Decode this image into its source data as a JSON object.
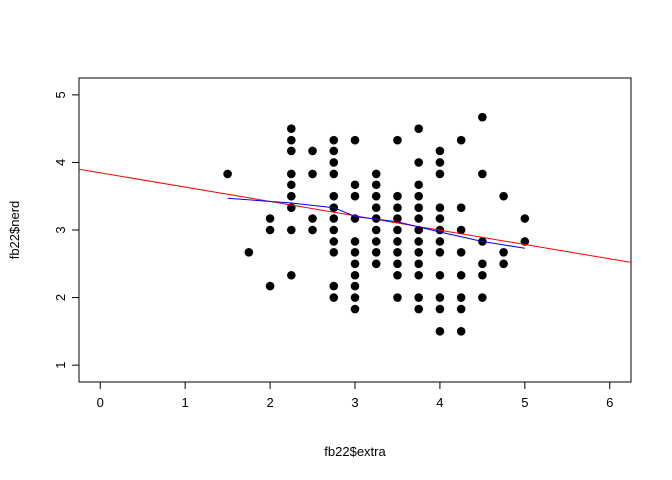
{
  "chart_data": {
    "type": "scatter",
    "title": "",
    "xlabel": "fb22$extra",
    "ylabel": "fb22$nerd",
    "xlim": [
      -0.25,
      6.25
    ],
    "ylim": [
      0.75,
      5.25
    ],
    "xticks": [
      0,
      1,
      2,
      3,
      4,
      5,
      6
    ],
    "yticks": [
      1,
      2,
      3,
      4,
      5
    ],
    "grid": false,
    "legend": "none",
    "points": [
      [
        1.5,
        3.83
      ],
      [
        1.75,
        2.67
      ],
      [
        2.0,
        3.17
      ],
      [
        2.0,
        3.0
      ],
      [
        2.0,
        2.17
      ],
      [
        2.25,
        4.5
      ],
      [
        2.25,
        4.33
      ],
      [
        2.25,
        4.17
      ],
      [
        2.25,
        3.83
      ],
      [
        2.25,
        3.67
      ],
      [
        2.25,
        3.5
      ],
      [
        2.25,
        3.33
      ],
      [
        2.25,
        3.0
      ],
      [
        2.25,
        2.33
      ],
      [
        2.5,
        4.17
      ],
      [
        2.5,
        3.83
      ],
      [
        2.5,
        3.17
      ],
      [
        2.5,
        3.0
      ],
      [
        2.75,
        4.33
      ],
      [
        2.75,
        4.17
      ],
      [
        2.75,
        4.0
      ],
      [
        2.75,
        3.83
      ],
      [
        2.75,
        3.5
      ],
      [
        2.75,
        3.33
      ],
      [
        2.75,
        3.17
      ],
      [
        2.75,
        3.0
      ],
      [
        2.75,
        2.83
      ],
      [
        2.75,
        2.67
      ],
      [
        2.75,
        2.17
      ],
      [
        2.75,
        2.0
      ],
      [
        3.0,
        4.33
      ],
      [
        3.0,
        3.67
      ],
      [
        3.0,
        3.5
      ],
      [
        3.0,
        3.17
      ],
      [
        3.0,
        2.83
      ],
      [
        3.0,
        2.67
      ],
      [
        3.0,
        2.5
      ],
      [
        3.0,
        2.33
      ],
      [
        3.0,
        2.17
      ],
      [
        3.0,
        2.0
      ],
      [
        3.0,
        1.83
      ],
      [
        3.25,
        3.83
      ],
      [
        3.25,
        3.67
      ],
      [
        3.25,
        3.5
      ],
      [
        3.25,
        3.33
      ],
      [
        3.25,
        3.17
      ],
      [
        3.25,
        3.0
      ],
      [
        3.25,
        2.83
      ],
      [
        3.25,
        2.67
      ],
      [
        3.25,
        2.5
      ],
      [
        3.5,
        4.33
      ],
      [
        3.5,
        3.5
      ],
      [
        3.5,
        3.33
      ],
      [
        3.5,
        3.17
      ],
      [
        3.5,
        3.0
      ],
      [
        3.5,
        2.83
      ],
      [
        3.5,
        2.67
      ],
      [
        3.5,
        2.5
      ],
      [
        3.5,
        2.33
      ],
      [
        3.5,
        2.0
      ],
      [
        3.75,
        4.5
      ],
      [
        3.75,
        4.0
      ],
      [
        3.75,
        3.67
      ],
      [
        3.75,
        3.5
      ],
      [
        3.75,
        3.33
      ],
      [
        3.75,
        3.17
      ],
      [
        3.75,
        3.0
      ],
      [
        3.75,
        2.83
      ],
      [
        3.75,
        2.67
      ],
      [
        3.75,
        2.5
      ],
      [
        3.75,
        2.33
      ],
      [
        3.75,
        2.0
      ],
      [
        3.75,
        1.83
      ],
      [
        4.0,
        4.17
      ],
      [
        4.0,
        4.0
      ],
      [
        4.0,
        3.83
      ],
      [
        4.0,
        3.33
      ],
      [
        4.0,
        3.17
      ],
      [
        4.0,
        3.0
      ],
      [
        4.0,
        2.83
      ],
      [
        4.0,
        2.67
      ],
      [
        4.0,
        2.33
      ],
      [
        4.0,
        2.0
      ],
      [
        4.0,
        1.83
      ],
      [
        4.0,
        1.5
      ],
      [
        4.25,
        4.33
      ],
      [
        4.25,
        3.33
      ],
      [
        4.25,
        3.0
      ],
      [
        4.25,
        2.67
      ],
      [
        4.25,
        2.33
      ],
      [
        4.25,
        2.0
      ],
      [
        4.25,
        1.83
      ],
      [
        4.25,
        1.5
      ],
      [
        4.5,
        4.67
      ],
      [
        4.5,
        3.83
      ],
      [
        4.5,
        2.83
      ],
      [
        4.5,
        2.5
      ],
      [
        4.5,
        2.33
      ],
      [
        4.5,
        2.0
      ],
      [
        4.75,
        3.5
      ],
      [
        4.75,
        2.67
      ],
      [
        4.75,
        2.5
      ],
      [
        5.0,
        3.17
      ],
      [
        5.0,
        2.83
      ]
    ],
    "regression_line": {
      "color": "#ff0000",
      "points": [
        [
          -0.25,
          3.9
        ],
        [
          6.25,
          2.52
        ]
      ]
    },
    "smooth_line": {
      "color": "#0000ff",
      "points": [
        [
          1.5,
          3.47
        ],
        [
          2.25,
          3.4
        ],
        [
          2.75,
          3.33
        ],
        [
          3.0,
          3.2
        ],
        [
          3.5,
          3.12
        ],
        [
          4.0,
          2.97
        ],
        [
          4.5,
          2.83
        ],
        [
          5.0,
          2.73
        ]
      ]
    }
  }
}
